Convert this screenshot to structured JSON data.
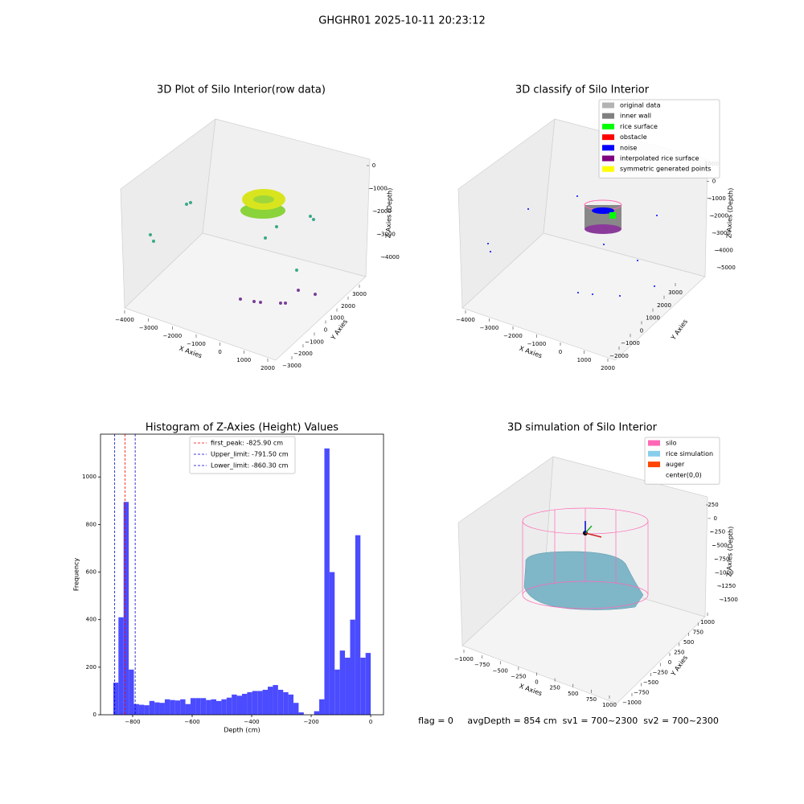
{
  "figure": {
    "title": "GHGHR01 2025-10-11 20:23:12",
    "footer": "flag = 0     avgDepth = 854 cm  sv1 = 700~2300  sv2 = 700~2300"
  },
  "chart_data": [
    {
      "type": "scatter3d",
      "title": "3D Plot of Silo Interior(row data)",
      "xlabel": "X Axies",
      "ylabel": "Y Axies",
      "zlabel": "Z Axies (Depth)",
      "xticks": [
        {
          "value": -4000,
          "label": "−4000"
        },
        {
          "value": -3000,
          "label": "−3000"
        },
        {
          "value": -2000,
          "label": "−2000"
        },
        {
          "value": -1000,
          "label": "−1000"
        },
        0,
        1000,
        2000
      ],
      "yticks": [
        {
          "value": -3000,
          "label": "−3000"
        },
        {
          "value": -2000,
          "label": "−2000"
        },
        {
          "value": -1000,
          "label": "−1000"
        },
        0,
        1000,
        2000,
        3000
      ],
      "zticks": [
        0,
        {
          "value": -1000,
          "label": "−1000"
        },
        {
          "value": -2000,
          "label": "−2000"
        },
        {
          "value": -3000,
          "label": "−3000"
        },
        {
          "value": -4000,
          "label": "−4000"
        }
      ]
    },
    {
      "type": "scatter3d",
      "title": "3D classify of Silo Interior",
      "xlabel": "X Axies",
      "ylabel": "Y Axies",
      "zlabel": "Z Axies (Depth)",
      "xticks": [
        {
          "value": -4000,
          "label": "−4000"
        },
        {
          "value": -3000,
          "label": "−3000"
        },
        {
          "value": -2000,
          "label": "−2000"
        },
        {
          "value": -1000,
          "label": "−1000"
        },
        0,
        1000,
        2000
      ],
      "yticks": [
        {
          "value": -2000,
          "label": "−2000"
        },
        {
          "value": -1000,
          "label": "−1000"
        },
        0,
        1000,
        2000,
        3000
      ],
      "zticks": [
        1000,
        0,
        {
          "value": -1000,
          "label": "−1000"
        },
        {
          "value": -2000,
          "label": "−2000"
        },
        {
          "value": -3000,
          "label": "−3000"
        },
        {
          "value": -4000,
          "label": "−4000"
        },
        {
          "value": -5000,
          "label": "−5000"
        }
      ],
      "legend": [
        {
          "name": "original data",
          "color": "#b3b3b3"
        },
        {
          "name": "inner wall",
          "color": "#808080"
        },
        {
          "name": "rice surface",
          "color": "#00ff00"
        },
        {
          "name": "obstacle",
          "color": "#ff0000"
        },
        {
          "name": "noise",
          "color": "#0000ff"
        },
        {
          "name": "interpolated rice surface",
          "color": "#800080"
        },
        {
          "name": "symmetric generated points",
          "color": "#ffff00"
        }
      ]
    },
    {
      "type": "histogram",
      "title": "Histogram of Z-Axies (Height) Values",
      "xlabel": "Depth (cm)",
      "ylabel": "Frequency",
      "color": "#4b4bff",
      "bins": [
        -865,
        -847.7,
        -830.4,
        -813.1,
        -795.8,
        -778.5,
        -761.2,
        -743.9,
        -726.6,
        -709.3,
        -692,
        -674.7,
        -657.4,
        -640.1,
        -622.8,
        -605.5,
        -588.2,
        -570.9,
        -553.6,
        -536.3,
        -519,
        -501.7,
        -484.4,
        -467.1,
        -449.8,
        -432.5,
        -415.2,
        -397.9,
        -380.6,
        -363.3,
        -346,
        -328.7,
        -311.4,
        -294.1,
        -276.8,
        -259.5,
        -242.2,
        -224.9,
        -207.6,
        -190.3,
        -173,
        -155.7,
        -138.4,
        -121.1,
        -103.8,
        -86.5,
        -69.2,
        -51.9,
        -34.6,
        -17.3,
        0
      ],
      "values": [
        135,
        410,
        895,
        190,
        45,
        42,
        40,
        58,
        52,
        50,
        65,
        62,
        60,
        65,
        45,
        70,
        70,
        70,
        62,
        65,
        58,
        65,
        72,
        85,
        80,
        88,
        95,
        100,
        100,
        105,
        118,
        125,
        105,
        95,
        85,
        50,
        10,
        0,
        0,
        15,
        65,
        1120,
        600,
        190,
        270,
        240,
        400,
        755,
        240,
        260
      ],
      "xlim": [
        -908,
        43
      ],
      "ylim": [
        0,
        1180
      ],
      "xticks": [
        {
          "value": -800,
          "label": "−800"
        },
        {
          "value": -600,
          "label": "−600"
        },
        {
          "value": -400,
          "label": "−400"
        },
        {
          "value": -200,
          "label": "−200"
        },
        0
      ],
      "yticks": [
        0,
        200,
        400,
        600,
        800,
        1000
      ],
      "vlines": [
        {
          "name": "first_peak: -825.90 cm",
          "value": -825.9,
          "color": "#ff0000"
        },
        {
          "name": "Upper_limit: -791.50 cm",
          "value": -791.5,
          "color": "#0000cc"
        },
        {
          "name": "Lower_limit: -860.30 cm",
          "value": -860.3,
          "color": "#0000cc"
        }
      ]
    },
    {
      "type": "surface3d",
      "title": "3D simulation of Silo Interior",
      "xlabel": "X Axies",
      "ylabel": "Y Axies",
      "zlabel": "Z Axies (Depth)",
      "xticks": [
        {
          "value": -1000,
          "label": "−1000"
        },
        {
          "value": -750,
          "label": "−750"
        },
        {
          "value": -500,
          "label": "−500"
        },
        {
          "value": -250,
          "label": "−250"
        },
        0,
        250,
        500,
        750,
        1000
      ],
      "yticks": [
        {
          "value": -1000,
          "label": "−1000"
        },
        {
          "value": -750,
          "label": "−750"
        },
        {
          "value": -500,
          "label": "−500"
        },
        {
          "value": -250,
          "label": "−250"
        },
        0,
        250,
        500,
        750,
        1000
      ],
      "zticks": [
        250,
        0,
        {
          "value": -250,
          "label": "−250"
        },
        {
          "value": -500,
          "label": "−500"
        },
        {
          "value": -750,
          "label": "−750"
        },
        {
          "value": -1000,
          "label": "−1000"
        },
        {
          "value": -1250,
          "label": "−1250"
        },
        {
          "value": -1500,
          "label": "−1500"
        }
      ],
      "legend": [
        {
          "name": "silo",
          "color": "#ff69b4"
        },
        {
          "name": "rice simulation",
          "color": "#87ceeb"
        },
        {
          "name": "auger",
          "color": "#ff4500"
        },
        {
          "name": "center(0,0)",
          "color": "#ffffff"
        }
      ]
    }
  ]
}
